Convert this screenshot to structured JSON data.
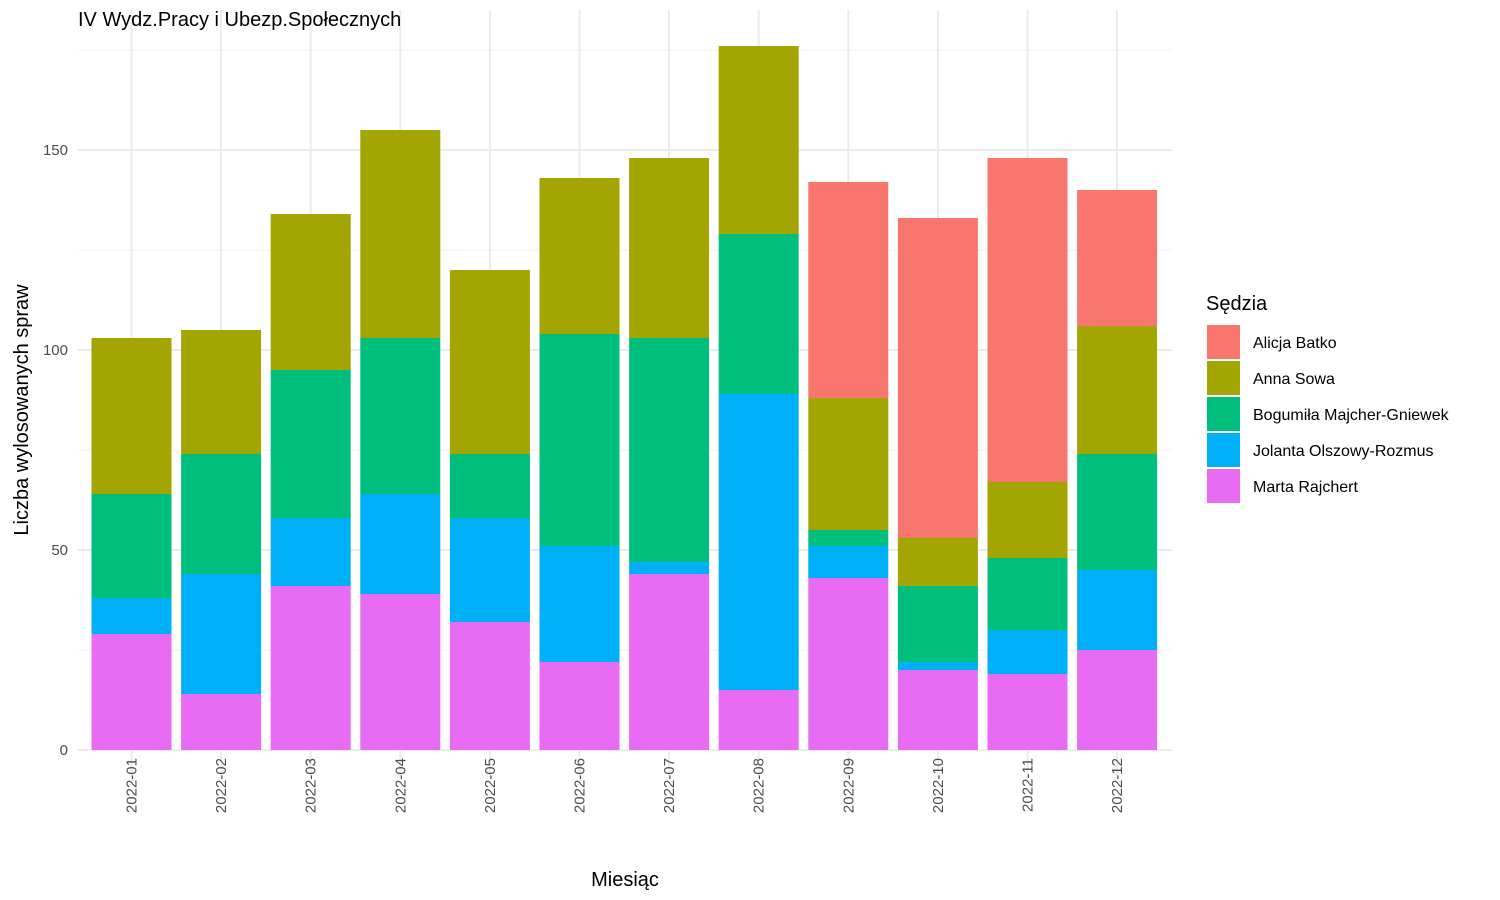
{
  "chart_data": {
    "type": "bar",
    "stacked": true,
    "title": "IV Wydz.Pracy i Ubezp.Społecznych",
    "xlabel": "Miesiąc",
    "ylabel": "Liczba wylosowanych spraw",
    "ylim": [
      0,
      180
    ],
    "yticks": [
      0,
      50,
      100,
      150
    ],
    "grid": true,
    "legend_title": "Sędzia",
    "legend_position": "right",
    "categories": [
      "2022-01",
      "2022-02",
      "2022-03",
      "2022-04",
      "2022-05",
      "2022-06",
      "2022-07",
      "2022-08",
      "2022-09",
      "2022-10",
      "2022-11",
      "2022-12"
    ],
    "series": [
      {
        "name": "Marta Rajchert",
        "color": "#E76BF3",
        "values": [
          29,
          14,
          41,
          39,
          32,
          22,
          44,
          15,
          43,
          20,
          19,
          25
        ]
      },
      {
        "name": "Jolanta Olszowy-Rozmus",
        "color": "#00B0F6",
        "values": [
          9,
          30,
          17,
          25,
          26,
          29,
          3,
          74,
          8,
          2,
          11,
          20
        ]
      },
      {
        "name": "Bogumiła Majcher-Gniewek",
        "color": "#00BF7D",
        "values": [
          26,
          30,
          37,
          39,
          16,
          53,
          56,
          40,
          4,
          19,
          18,
          29
        ]
      },
      {
        "name": "Anna Sowa",
        "color": "#A3A500",
        "values": [
          39,
          31,
          39,
          52,
          46,
          39,
          45,
          47,
          33,
          12,
          19,
          32
        ]
      },
      {
        "name": "Alicja Batko",
        "color": "#F8766D",
        "values": [
          0,
          0,
          0,
          0,
          0,
          0,
          0,
          0,
          54,
          80,
          81,
          34
        ]
      }
    ],
    "legend_order": [
      "Alicja Batko",
      "Anna Sowa",
      "Bogumiła Majcher-Gniewek",
      "Jolanta Olszowy-Rozmus",
      "Marta Rajchert"
    ]
  }
}
